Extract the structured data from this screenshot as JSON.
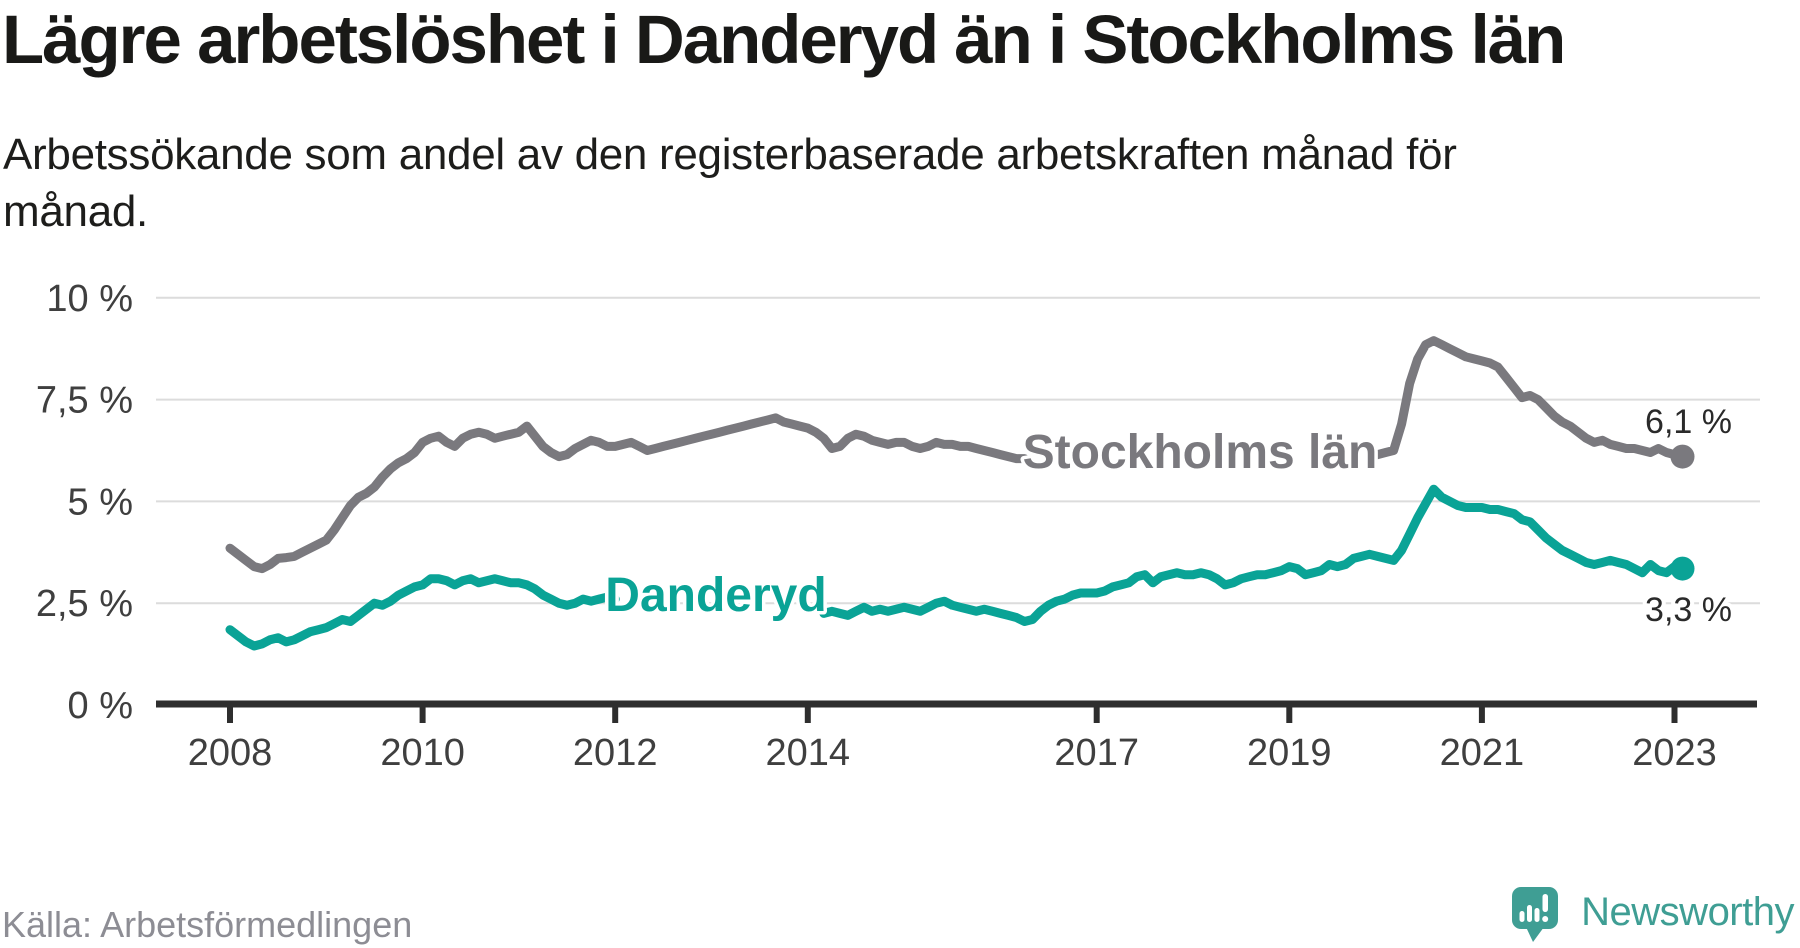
{
  "header": {
    "title": "Lägre arbetslöshet i Danderyd än i Stockholms län",
    "subtitle": "Arbetssökande som andel av den registerbaserade arbetskraften månad för månad.",
    "subtitle_lines": [
      "Arbetssökande som andel av den registerbaserade arbetskraften månad för",
      "månad."
    ]
  },
  "footer": {
    "source": "Källa: Arbetsförmedlingen",
    "brand": "Newsworthy"
  },
  "colors": {
    "background": "#ffffff",
    "title": "#191917",
    "subtitle": "#1d1d1b",
    "tick_label": "#3f3f3f",
    "grid": "#dcdcdc",
    "axis": "#2e2e2e",
    "end_label": "#2a2a2a",
    "source_text": "#8d8d94",
    "brand_teal": "#3f9e94",
    "series_danderyd": "#0aa396",
    "series_stockholm": "#7a797e"
  },
  "chart_data": {
    "type": "line",
    "title": "Lägre arbetslöshet i Danderyd än i Stockholms län",
    "subtitle": "Arbetssökande som andel av den registerbaserade arbetskraften månad för månad.",
    "xlabel": "",
    "ylabel": "",
    "grid": true,
    "legend_position": "inline",
    "x_unit": "year-month",
    "x_start": 2008.0,
    "x_step_years": 0.0833333,
    "x_end_label_month": "2023-02",
    "xlim": [
      2007.2,
      2023.9
    ],
    "ylim": [
      0,
      10.4
    ],
    "y_ticks": [
      0,
      2.5,
      5,
      7.5,
      10
    ],
    "y_tick_labels": [
      "0 %",
      "2,5 %",
      "5 %",
      "7,5 %",
      "10 %"
    ],
    "x_ticks": [
      2008,
      2010,
      2012,
      2014,
      2017,
      2019,
      2021,
      2023
    ],
    "x_tick_labels": [
      "2008",
      "2010",
      "2012",
      "2014",
      "2017",
      "2019",
      "2021",
      "2023"
    ],
    "series": [
      {
        "name": "Stockholms län",
        "color": "#7a797e",
        "end_value": 6.1,
        "end_label": "6,1 %",
        "values": [
          3.85,
          3.7,
          3.55,
          3.4,
          3.35,
          3.45,
          3.6,
          3.62,
          3.65,
          3.75,
          3.85,
          3.95,
          4.05,
          4.3,
          4.6,
          4.9,
          5.1,
          5.2,
          5.35,
          5.6,
          5.8,
          5.95,
          6.05,
          6.2,
          6.45,
          6.55,
          6.6,
          6.45,
          6.35,
          6.55,
          6.65,
          6.7,
          6.65,
          6.55,
          6.6,
          6.65,
          6.7,
          6.85,
          6.6,
          6.35,
          6.2,
          6.1,
          6.15,
          6.3,
          6.4,
          6.5,
          6.45,
          6.35,
          6.35,
          6.4,
          6.45,
          6.35,
          6.25,
          6.3,
          6.35,
          6.4,
          6.45,
          6.5,
          6.55,
          6.6,
          6.65,
          6.7,
          6.75,
          6.8,
          6.85,
          6.9,
          6.95,
          7.0,
          7.05,
          6.95,
          6.9,
          6.85,
          6.8,
          6.7,
          6.55,
          6.3,
          6.35,
          6.55,
          6.65,
          6.6,
          6.5,
          6.45,
          6.4,
          6.45,
          6.45,
          6.35,
          6.3,
          6.35,
          6.45,
          6.4,
          6.4,
          6.35,
          6.35,
          6.3,
          6.25,
          6.2,
          6.15,
          6.1,
          6.05,
          6.05,
          null,
          null,
          null,
          null,
          null,
          null,
          null,
          null,
          null,
          null,
          null,
          null,
          null,
          null,
          null,
          null,
          null,
          null,
          null,
          null,
          null,
          null,
          null,
          null,
          null,
          null,
          null,
          null,
          null,
          null,
          null,
          null,
          null,
          null,
          null,
          null,
          null,
          null,
          null,
          null,
          null,
          null,
          6.1,
          6.15,
          6.2,
          6.25,
          6.9,
          7.9,
          8.5,
          8.85,
          8.95,
          8.85,
          8.75,
          8.65,
          8.55,
          8.5,
          8.45,
          8.4,
          8.3,
          8.05,
          7.8,
          7.55,
          7.6,
          7.5,
          7.3,
          7.1,
          6.95,
          6.85,
          6.7,
          6.55,
          6.45,
          6.5,
          6.4,
          6.35,
          6.3,
          6.3,
          6.25,
          6.2,
          6.3,
          6.2,
          6.15,
          6.1
        ]
      },
      {
        "name": "Danderyd",
        "color": "#0aa396",
        "end_value": 3.3,
        "end_label": "3,3 %",
        "values": [
          1.85,
          1.7,
          1.55,
          1.45,
          1.5,
          1.6,
          1.65,
          1.55,
          1.6,
          1.7,
          1.8,
          1.85,
          1.9,
          2.0,
          2.1,
          2.05,
          2.2,
          2.35,
          2.5,
          2.45,
          2.55,
          2.7,
          2.8,
          2.9,
          2.95,
          3.1,
          3.1,
          3.05,
          2.95,
          3.05,
          3.1,
          3.0,
          3.05,
          3.1,
          3.05,
          3.0,
          3.0,
          2.95,
          2.85,
          2.7,
          2.6,
          2.5,
          2.45,
          2.5,
          2.6,
          2.55,
          2.6,
          2.65,
          2.6,
          null,
          null,
          null,
          null,
          null,
          null,
          null,
          null,
          null,
          null,
          null,
          null,
          null,
          null,
          null,
          null,
          null,
          null,
          null,
          null,
          null,
          null,
          null,
          null,
          null,
          2.25,
          2.3,
          2.25,
          2.2,
          2.3,
          2.4,
          2.3,
          2.35,
          2.3,
          2.35,
          2.4,
          2.35,
          2.3,
          2.4,
          2.5,
          2.55,
          2.45,
          2.4,
          2.35,
          2.3,
          2.35,
          2.3,
          2.25,
          2.2,
          2.15,
          2.05,
          2.1,
          2.3,
          2.45,
          2.55,
          2.6,
          2.7,
          2.75,
          2.75,
          2.75,
          2.8,
          2.9,
          2.95,
          3.0,
          3.15,
          3.2,
          3.0,
          3.15,
          3.2,
          3.25,
          3.2,
          3.2,
          3.25,
          3.2,
          3.1,
          2.95,
          3.0,
          3.1,
          3.15,
          3.2,
          3.2,
          3.25,
          3.3,
          3.4,
          3.35,
          3.2,
          3.25,
          3.3,
          3.45,
          3.4,
          3.45,
          3.6,
          3.65,
          3.7,
          3.65,
          3.6,
          3.55,
          3.8,
          4.2,
          4.6,
          4.95,
          5.3,
          5.1,
          5.0,
          4.9,
          4.85,
          4.85,
          4.85,
          4.8,
          4.8,
          4.75,
          4.7,
          4.55,
          4.5,
          4.3,
          4.1,
          3.95,
          3.8,
          3.7,
          3.6,
          3.5,
          3.45,
          3.5,
          3.55,
          3.5,
          3.45,
          3.35,
          3.25,
          3.45,
          3.3,
          3.25,
          3.4,
          3.35
        ]
      }
    ]
  }
}
